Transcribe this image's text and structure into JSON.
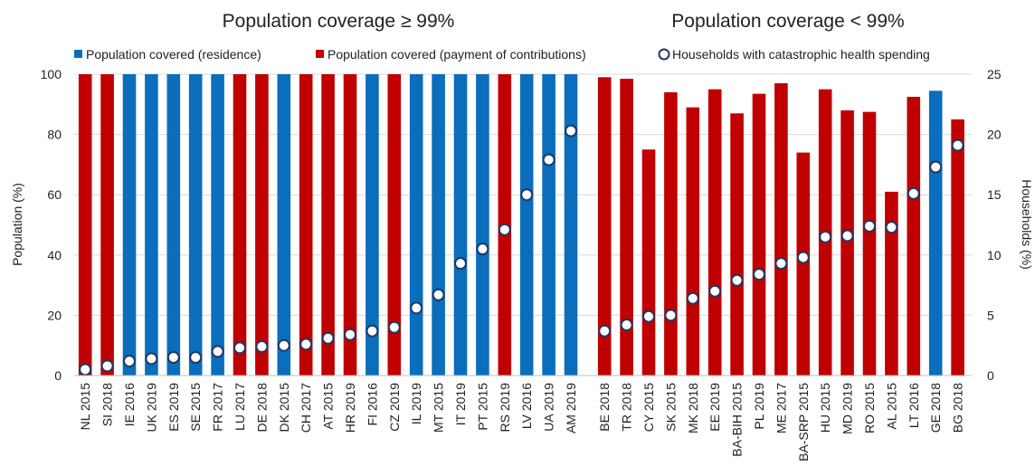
{
  "chart_data": {
    "type": "bar",
    "panels": [
      {
        "title": "Population coverage ≥ 99%"
      },
      {
        "title": "Population coverage < 99%"
      }
    ],
    "legend": {
      "items": [
        {
          "label": "Population covered (residence)",
          "color": "#0a6ebd",
          "shape": "square"
        },
        {
          "label": "Population covered (payment of contributions)",
          "color": "#c00000",
          "shape": "square"
        },
        {
          "label": "Households with catastrophic health spending",
          "color": "#ffffff",
          "edge": "#1f3864",
          "shape": "circle"
        }
      ]
    },
    "y_left": {
      "label": "Population (%)",
      "ylim": [
        0,
        100
      ],
      "ticks": [
        "0",
        "20",
        "40",
        "60",
        "80",
        "100"
      ]
    },
    "y_right": {
      "label": "Households (%)",
      "ylim": [
        0,
        25
      ],
      "ticks": [
        "0",
        "5",
        "10",
        "15",
        "20",
        "25"
      ]
    },
    "groups": [
      {
        "categories": [
          "NL 2015",
          "SI 2018",
          "IE 2016",
          "UK 2019",
          "ES 2019",
          "SE 2015",
          "FR 2017",
          "LU 2017",
          "DE 2018",
          "DK 2015",
          "CH 2017",
          "AT 2015",
          "HR 2019",
          "FI 2016",
          "CZ 2019",
          "IL 2019",
          "MT 2015",
          "IT 2019",
          "PT 2015",
          "RS 2019",
          "LV 2016",
          "UA 2019",
          "AM 2019"
        ],
        "coverage": [
          100,
          100,
          100,
          100,
          100,
          100,
          100,
          100,
          100,
          100,
          100,
          100,
          100,
          100,
          100,
          100,
          100,
          100,
          100,
          100,
          100,
          100,
          100
        ],
        "basis": [
          "contributions",
          "contributions",
          "residence",
          "residence",
          "residence",
          "residence",
          "residence",
          "contributions",
          "contributions",
          "residence",
          "contributions",
          "contributions",
          "contributions",
          "residence",
          "contributions",
          "residence",
          "residence",
          "residence",
          "residence",
          "contributions",
          "residence",
          "residence",
          "residence"
        ],
        "households": [
          0.5,
          0.8,
          1.2,
          1.4,
          1.5,
          1.5,
          2.0,
          2.3,
          2.4,
          2.5,
          2.6,
          3.1,
          3.4,
          3.7,
          4.0,
          5.6,
          6.7,
          9.3,
          10.5,
          12.1,
          15.0,
          17.9,
          20.3
        ]
      },
      {
        "categories": [
          "BE 2018",
          "TR 2018",
          "CY 2015",
          "SK 2015",
          "MK 2018",
          "EE 2019",
          "BA-BIH 2015",
          "PL 2019",
          "ME 2017",
          "BA-SRP 2015",
          "HU 2015",
          "MD 2019",
          "RO 2015",
          "AL 2015",
          "LT 2016",
          "GE 2018",
          "BG 2018"
        ],
        "coverage": [
          99,
          98.5,
          75,
          94,
          89,
          95,
          87,
          93.5,
          97,
          74,
          95,
          88,
          87.5,
          61,
          92.5,
          94.5,
          85
        ],
        "basis": [
          "contributions",
          "contributions",
          "contributions",
          "contributions",
          "contributions",
          "contributions",
          "contributions",
          "contributions",
          "contributions",
          "contributions",
          "contributions",
          "contributions",
          "contributions",
          "contributions",
          "contributions",
          "residence",
          "contributions"
        ],
        "households": [
          3.7,
          4.2,
          4.9,
          5.0,
          6.4,
          7.0,
          7.9,
          8.4,
          9.3,
          9.8,
          11.5,
          11.6,
          12.4,
          12.3,
          15.1,
          17.3,
          19.1
        ]
      }
    ]
  }
}
